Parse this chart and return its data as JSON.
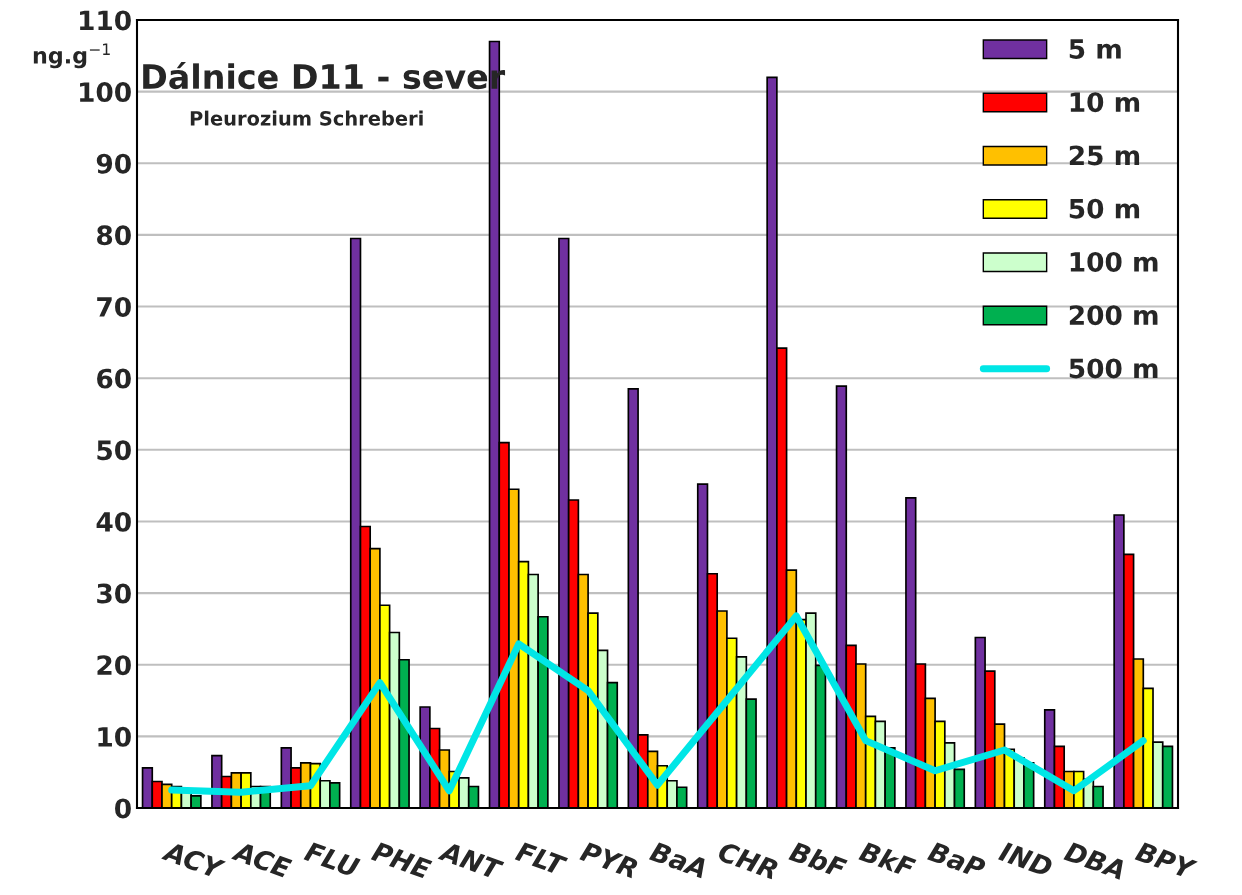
{
  "chart_data": {
    "type": "bar",
    "title": "Dálnice D11 - sever",
    "subtitle": "Pleurozium Schreberi",
    "ylabel": "ng.g$^{−1}$",
    "categories": [
      "ACY",
      "ACE",
      "FLU",
      "PHE",
      "ANT",
      "FLT",
      "PYR",
      "BaA",
      "CHR",
      "BbF",
      "BkF",
      "BaP",
      "IND",
      "DBA",
      "BPY"
    ],
    "series": [
      {
        "name": "5 m",
        "color": "#7030a0",
        "values": [
          5.6,
          7.3,
          8.4,
          79.5,
          14.1,
          107,
          79.5,
          58.5,
          45.2,
          102,
          58.9,
          43.3,
          23.8,
          13.7,
          40.9
        ]
      },
      {
        "name": "10 m",
        "color": "#ff0000",
        "values": [
          3.7,
          4.4,
          5.6,
          39.3,
          11.1,
          51,
          43,
          10.2,
          32.7,
          64.2,
          22.7,
          20.1,
          19.1,
          8.6,
          35.4
        ]
      },
      {
        "name": "25 m",
        "color": "#ffc000",
        "values": [
          3.3,
          4.9,
          6.3,
          36.2,
          8.1,
          44.5,
          32.6,
          7.9,
          27.5,
          33.2,
          20.1,
          15.3,
          11.7,
          5.1,
          20.8
        ]
      },
      {
        "name": "50 m",
        "color": "#ffff00",
        "values": [
          3.0,
          4.9,
          6.2,
          28.3,
          5.1,
          34.4,
          27.2,
          5.9,
          23.7,
          26.3,
          12.8,
          12.1,
          8.2,
          5.1,
          16.7
        ]
      },
      {
        "name": "100 m",
        "color": "#ccffcc",
        "values": [
          2.6,
          3.0,
          3.8,
          24.5,
          4.2,
          32.6,
          22.0,
          3.8,
          21.1,
          27.2,
          12.1,
          9.1,
          7.0,
          4.0,
          9.2
        ]
      },
      {
        "name": "200 m",
        "color": "#00b050",
        "values": [
          1.7,
          3.0,
          3.5,
          20.7,
          3.0,
          26.7,
          17.5,
          2.9,
          15.2,
          19.9,
          8.4,
          5.4,
          6.3,
          3.0,
          8.6
        ]
      },
      {
        "name": "500 m",
        "type": "line",
        "color": "#00e6e6",
        "values": [
          2.5,
          2.2,
          3.1,
          17.5,
          2.4,
          22.9,
          16.4,
          3.2,
          15.0,
          26.8,
          9.4,
          5.2,
          8.1,
          2.4,
          9.4
        ]
      }
    ],
    "ylim": [
      0,
      110
    ],
    "yticks": [
      0,
      10,
      20,
      30,
      40,
      50,
      60,
      70,
      80,
      90,
      100,
      110
    ],
    "grid": "y",
    "legend": "top right"
  }
}
